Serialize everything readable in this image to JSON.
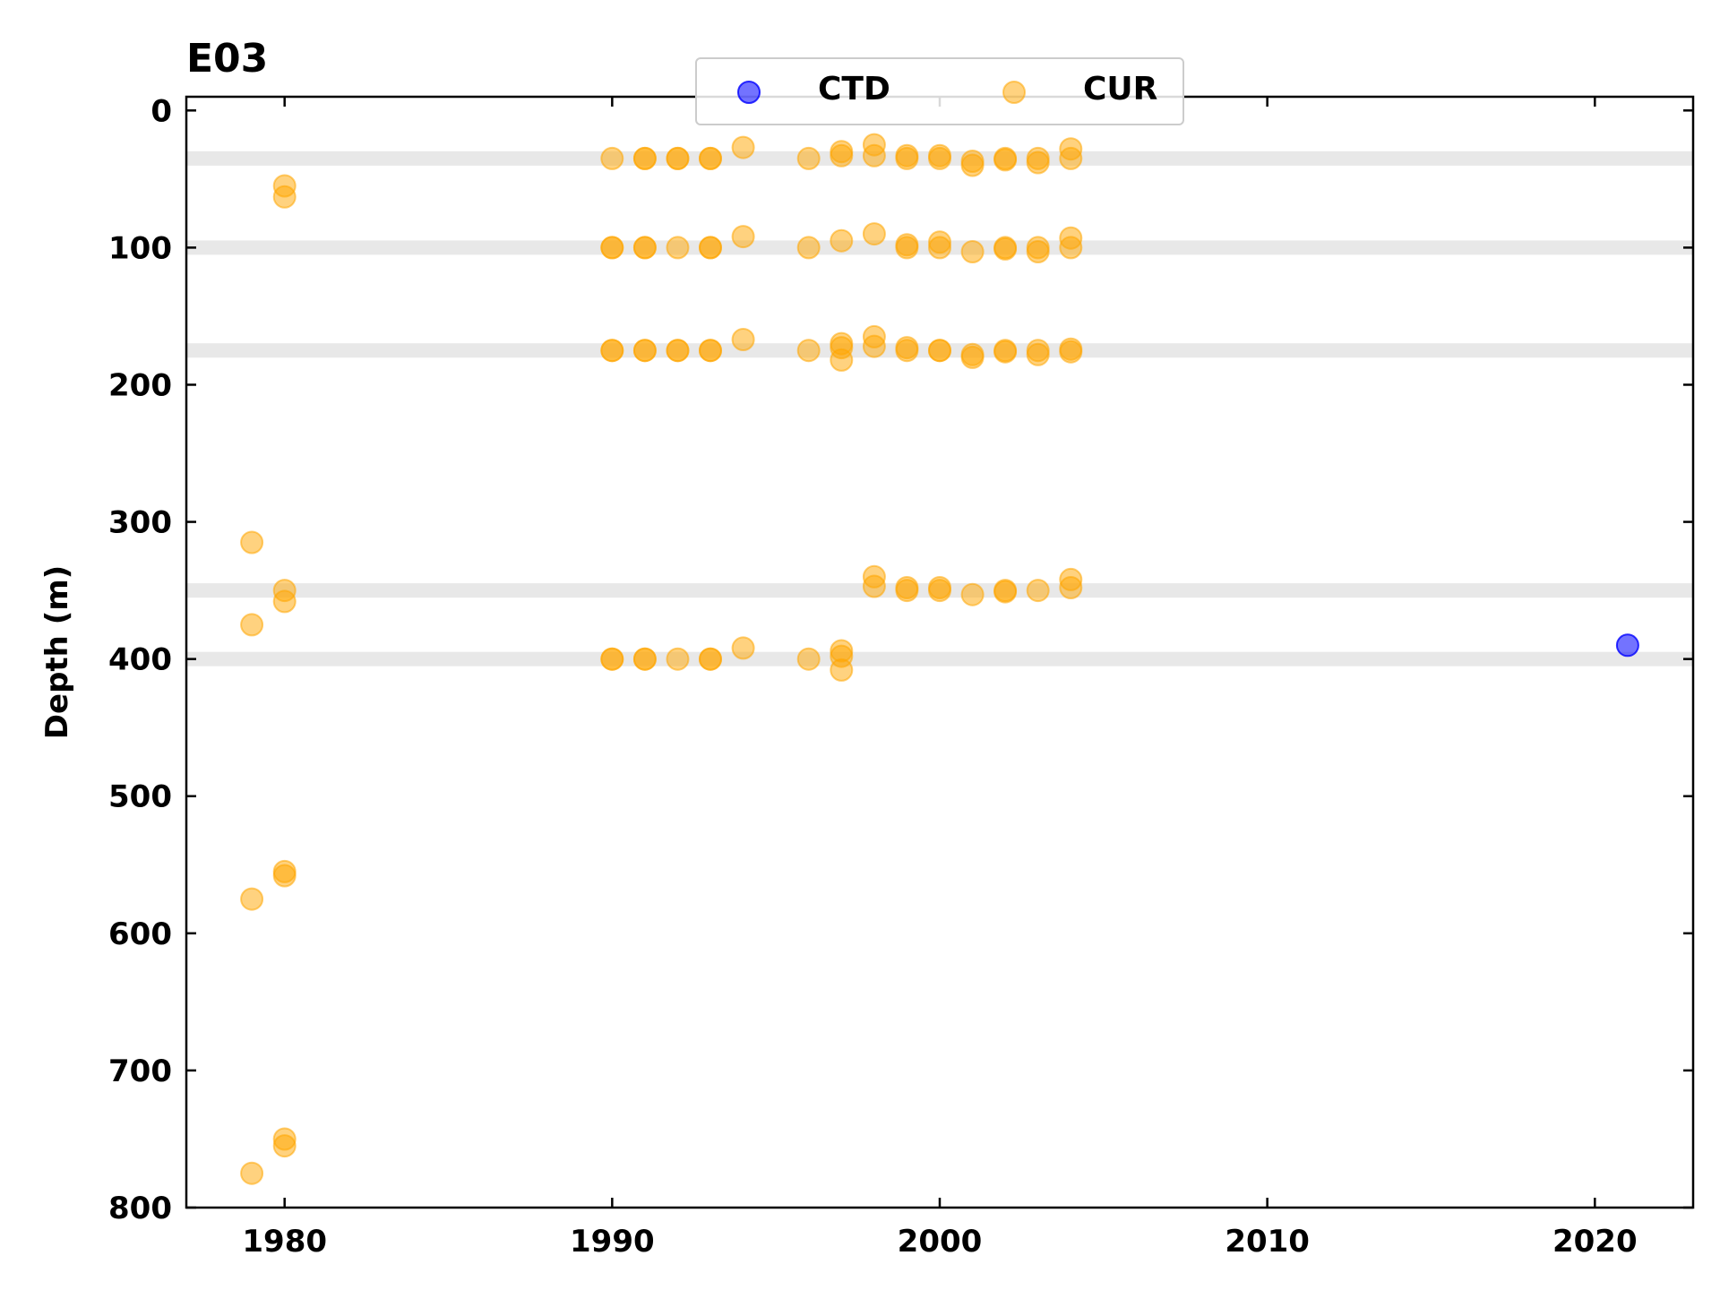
{
  "chart_data": {
    "type": "scatter",
    "title": "E03",
    "xlabel": "",
    "ylabel": "Depth (m)",
    "xlim": [
      1977,
      2023
    ],
    "ylim": [
      800,
      -10
    ],
    "y_inverted": true,
    "x_ticks": [
      "1980",
      "1990",
      "2000",
      "2010",
      "2020"
    ],
    "y_ticks": [
      "0",
      "100",
      "200",
      "300",
      "400",
      "500",
      "600",
      "700",
      "800"
    ],
    "grid": false,
    "legend": {
      "placement": "top-center",
      "columns": 2
    },
    "reference_depth_bands": [
      35,
      100,
      175,
      350,
      400
    ],
    "colors": {
      "CTD": "#0000ff",
      "CUR": "#ffa500",
      "band": "#d9d9d9"
    },
    "series": [
      {
        "name": "CTD",
        "color": "#0000ff",
        "points": [
          {
            "x": 2021,
            "y": 390
          }
        ]
      },
      {
        "name": "CUR",
        "color": "#ffa500",
        "points": [
          {
            "x": 1979,
            "y": 315
          },
          {
            "x": 1979,
            "y": 375
          },
          {
            "x": 1979,
            "y": 575
          },
          {
            "x": 1979,
            "y": 775
          },
          {
            "x": 1980,
            "y": 55
          },
          {
            "x": 1980,
            "y": 63
          },
          {
            "x": 1980,
            "y": 350
          },
          {
            "x": 1980,
            "y": 358
          },
          {
            "x": 1980,
            "y": 555
          },
          {
            "x": 1980,
            "y": 558
          },
          {
            "x": 1980,
            "y": 750
          },
          {
            "x": 1980,
            "y": 755
          },
          {
            "x": 1990,
            "y": 35
          },
          {
            "x": 1990,
            "y": 100
          },
          {
            "x": 1990,
            "y": 100
          },
          {
            "x": 1990,
            "y": 175
          },
          {
            "x": 1990,
            "y": 175
          },
          {
            "x": 1990,
            "y": 400
          },
          {
            "x": 1990,
            "y": 400
          },
          {
            "x": 1991,
            "y": 35
          },
          {
            "x": 1991,
            "y": 35
          },
          {
            "x": 1991,
            "y": 100
          },
          {
            "x": 1991,
            "y": 100
          },
          {
            "x": 1991,
            "y": 175
          },
          {
            "x": 1991,
            "y": 175
          },
          {
            "x": 1991,
            "y": 400
          },
          {
            "x": 1991,
            "y": 400
          },
          {
            "x": 1992,
            "y": 35
          },
          {
            "x": 1992,
            "y": 35
          },
          {
            "x": 1992,
            "y": 100
          },
          {
            "x": 1992,
            "y": 175
          },
          {
            "x": 1992,
            "y": 175
          },
          {
            "x": 1992,
            "y": 400
          },
          {
            "x": 1993,
            "y": 35
          },
          {
            "x": 1993,
            "y": 35
          },
          {
            "x": 1993,
            "y": 100
          },
          {
            "x": 1993,
            "y": 100
          },
          {
            "x": 1993,
            "y": 175
          },
          {
            "x": 1993,
            "y": 175
          },
          {
            "x": 1993,
            "y": 400
          },
          {
            "x": 1993,
            "y": 400
          },
          {
            "x": 1994,
            "y": 27
          },
          {
            "x": 1994,
            "y": 92
          },
          {
            "x": 1994,
            "y": 167
          },
          {
            "x": 1994,
            "y": 392
          },
          {
            "x": 1996,
            "y": 35
          },
          {
            "x": 1996,
            "y": 100
          },
          {
            "x": 1996,
            "y": 175
          },
          {
            "x": 1996,
            "y": 400
          },
          {
            "x": 1997,
            "y": 30
          },
          {
            "x": 1997,
            "y": 33
          },
          {
            "x": 1997,
            "y": 95
          },
          {
            "x": 1997,
            "y": 170
          },
          {
            "x": 1997,
            "y": 173
          },
          {
            "x": 1997,
            "y": 182
          },
          {
            "x": 1997,
            "y": 394
          },
          {
            "x": 1997,
            "y": 398
          },
          {
            "x": 1997,
            "y": 408
          },
          {
            "x": 1998,
            "y": 25
          },
          {
            "x": 1998,
            "y": 33
          },
          {
            "x": 1998,
            "y": 90
          },
          {
            "x": 1998,
            "y": 165
          },
          {
            "x": 1998,
            "y": 172
          },
          {
            "x": 1998,
            "y": 340
          },
          {
            "x": 1998,
            "y": 347
          },
          {
            "x": 1999,
            "y": 33
          },
          {
            "x": 1999,
            "y": 35
          },
          {
            "x": 1999,
            "y": 98
          },
          {
            "x": 1999,
            "y": 100
          },
          {
            "x": 1999,
            "y": 173
          },
          {
            "x": 1999,
            "y": 175
          },
          {
            "x": 1999,
            "y": 348
          },
          {
            "x": 1999,
            "y": 350
          },
          {
            "x": 2000,
            "y": 33
          },
          {
            "x": 2000,
            "y": 35
          },
          {
            "x": 2000,
            "y": 96
          },
          {
            "x": 2000,
            "y": 100
          },
          {
            "x": 2000,
            "y": 175
          },
          {
            "x": 2000,
            "y": 175
          },
          {
            "x": 2000,
            "y": 348
          },
          {
            "x": 2000,
            "y": 350
          },
          {
            "x": 2001,
            "y": 37
          },
          {
            "x": 2001,
            "y": 40
          },
          {
            "x": 2001,
            "y": 103
          },
          {
            "x": 2001,
            "y": 178
          },
          {
            "x": 2001,
            "y": 180
          },
          {
            "x": 2001,
            "y": 353
          },
          {
            "x": 2002,
            "y": 35
          },
          {
            "x": 2002,
            "y": 36
          },
          {
            "x": 2002,
            "y": 100
          },
          {
            "x": 2002,
            "y": 101
          },
          {
            "x": 2002,
            "y": 175
          },
          {
            "x": 2002,
            "y": 176
          },
          {
            "x": 2002,
            "y": 350
          },
          {
            "x": 2002,
            "y": 351
          },
          {
            "x": 2003,
            "y": 35
          },
          {
            "x": 2003,
            "y": 38
          },
          {
            "x": 2003,
            "y": 100
          },
          {
            "x": 2003,
            "y": 103
          },
          {
            "x": 2003,
            "y": 175
          },
          {
            "x": 2003,
            "y": 178
          },
          {
            "x": 2003,
            "y": 350
          },
          {
            "x": 2004,
            "y": 28
          },
          {
            "x": 2004,
            "y": 35
          },
          {
            "x": 2004,
            "y": 93
          },
          {
            "x": 2004,
            "y": 100
          },
          {
            "x": 2004,
            "y": 174
          },
          {
            "x": 2004,
            "y": 176
          },
          {
            "x": 2004,
            "y": 342
          },
          {
            "x": 2004,
            "y": 348
          }
        ]
      }
    ]
  }
}
